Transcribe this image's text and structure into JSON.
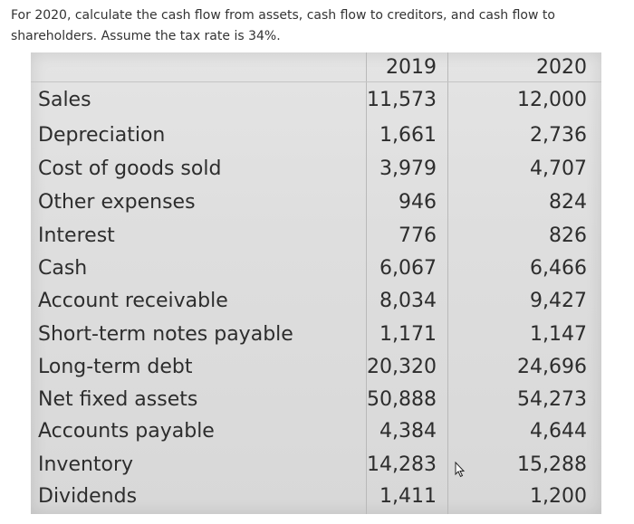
{
  "question": "For 2020, calculate the cash flow from assets, cash flow to creditors, and cash flow to shareholders. Assume the tax rate is 34%.",
  "table": {
    "headers": [
      "2019",
      "2020"
    ],
    "rows": [
      {
        "label": "Sales",
        "y2019": "11,573",
        "y2020": "12,000"
      },
      {
        "label": "Depreciation",
        "y2019": "1,661",
        "y2020": "2,736"
      },
      {
        "label": "Cost of goods sold",
        "y2019": "3,979",
        "y2020": "4,707"
      },
      {
        "label": "Other expenses",
        "y2019": "946",
        "y2020": "824"
      },
      {
        "label": "Interest",
        "y2019": "776",
        "y2020": "826"
      },
      {
        "label": "Cash",
        "y2019": "6,067",
        "y2020": "6,466"
      },
      {
        "label": "Account receivable",
        "y2019": "8,034",
        "y2020": "9,427"
      },
      {
        "label": "Short-term notes payable",
        "y2019": "1,171",
        "y2020": "1,147"
      },
      {
        "label": "Long-term debt",
        "y2019": "20,320",
        "y2020": "24,696"
      },
      {
        "label": "Net fixed assets",
        "y2019": "50,888",
        "y2020": "54,273"
      },
      {
        "label": "Accounts payable",
        "y2019": "4,384",
        "y2020": "4,644"
      },
      {
        "label": "Inventory",
        "y2019": "14,283",
        "y2020": "15,288"
      },
      {
        "label": "Dividends",
        "y2019": "1,411",
        "y2020": "1,200"
      }
    ]
  }
}
